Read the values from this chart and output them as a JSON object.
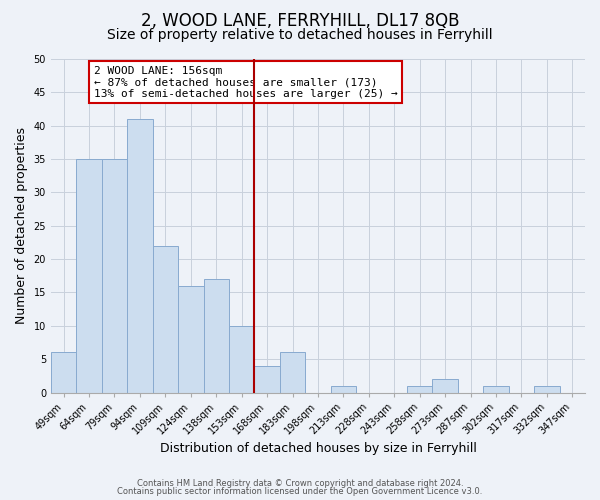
{
  "title": "2, WOOD LANE, FERRYHILL, DL17 8QB",
  "subtitle": "Size of property relative to detached houses in Ferryhill",
  "xlabel": "Distribution of detached houses by size in Ferryhill",
  "ylabel": "Number of detached properties",
  "bin_labels": [
    "49sqm",
    "64sqm",
    "79sqm",
    "94sqm",
    "109sqm",
    "124sqm",
    "138sqm",
    "153sqm",
    "168sqm",
    "183sqm",
    "198sqm",
    "213sqm",
    "228sqm",
    "243sqm",
    "258sqm",
    "273sqm",
    "287sqm",
    "302sqm",
    "317sqm",
    "332sqm",
    "347sqm"
  ],
  "bar_values": [
    6,
    35,
    35,
    41,
    22,
    16,
    17,
    10,
    4,
    6,
    0,
    1,
    0,
    0,
    1,
    2,
    0,
    1,
    0,
    1,
    0
  ],
  "bar_color": "#ccddef",
  "bar_edge_color": "#88aacf",
  "vline_x_bin": 7,
  "vline_color": "#aa0000",
  "annotation_title": "2 WOOD LANE: 156sqm",
  "annotation_line1": "← 87% of detached houses are smaller (173)",
  "annotation_line2": "13% of semi-detached houses are larger (25) →",
  "annotation_box_color": "#cc0000",
  "ylim": [
    0,
    50
  ],
  "yticks": [
    0,
    5,
    10,
    15,
    20,
    25,
    30,
    35,
    40,
    45,
    50
  ],
  "footer_line1": "Contains HM Land Registry data © Crown copyright and database right 2024.",
  "footer_line2": "Contains public sector information licensed under the Open Government Licence v3.0.",
  "bg_color": "#eef2f8",
  "title_fontsize": 12,
  "subtitle_fontsize": 10,
  "xlabel_fontsize": 9,
  "ylabel_fontsize": 9,
  "annotation_fontsize": 8,
  "tick_fontsize": 7
}
